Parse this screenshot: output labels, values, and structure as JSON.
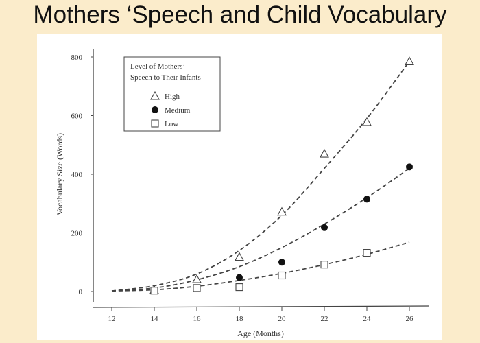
{
  "title": "Mothers ‘Speech and Child Vocabulary",
  "chart_data": {
    "type": "scatter",
    "xlabel": "Age (Months)",
    "ylabel": "Vocabulary Size (Words)",
    "xlim": [
      12,
      26
    ],
    "ylim": [
      0,
      800
    ],
    "xticks": [
      12,
      14,
      16,
      18,
      20,
      22,
      24,
      26
    ],
    "yticks": [
      0,
      200,
      400,
      600,
      800
    ],
    "grid": false,
    "legend": {
      "title_lines": [
        "Level of Mothers’",
        "Speech to Their Infants"
      ],
      "placement": "top-left"
    },
    "series": [
      {
        "name": "High",
        "marker": "open-triangle",
        "color": "#555555",
        "x": [
          14,
          16,
          18,
          20,
          22,
          24,
          26
        ],
        "y": [
          5,
          42,
          118,
          272,
          470,
          578,
          785
        ],
        "fit_curve": {
          "x": [
            12,
            14,
            16,
            18,
            20,
            22,
            24,
            26
          ],
          "y": [
            2,
            20,
            60,
            140,
            260,
            420,
            590,
            785
          ]
        }
      },
      {
        "name": "Medium",
        "marker": "filled-circle",
        "color": "#1a1a1a",
        "x": [
          14,
          16,
          18,
          20,
          22,
          24,
          26
        ],
        "y": [
          5,
          12,
          48,
          100,
          218,
          315,
          425
        ],
        "fit_curve": {
          "x": [
            12,
            14,
            16,
            18,
            20,
            22,
            24,
            26
          ],
          "y": [
            2,
            12,
            40,
            85,
            150,
            230,
            320,
            420
          ]
        }
      },
      {
        "name": "Low",
        "marker": "open-square",
        "color": "#555555",
        "x": [
          14,
          16,
          18,
          20,
          22,
          24
        ],
        "y": [
          3,
          12,
          15,
          55,
          92,
          132
        ],
        "fit_curve": {
          "x": [
            12,
            14,
            16,
            18,
            20,
            22,
            24,
            26
          ],
          "y": [
            2,
            6,
            18,
            38,
            62,
            92,
            127,
            168
          ]
        }
      }
    ]
  }
}
